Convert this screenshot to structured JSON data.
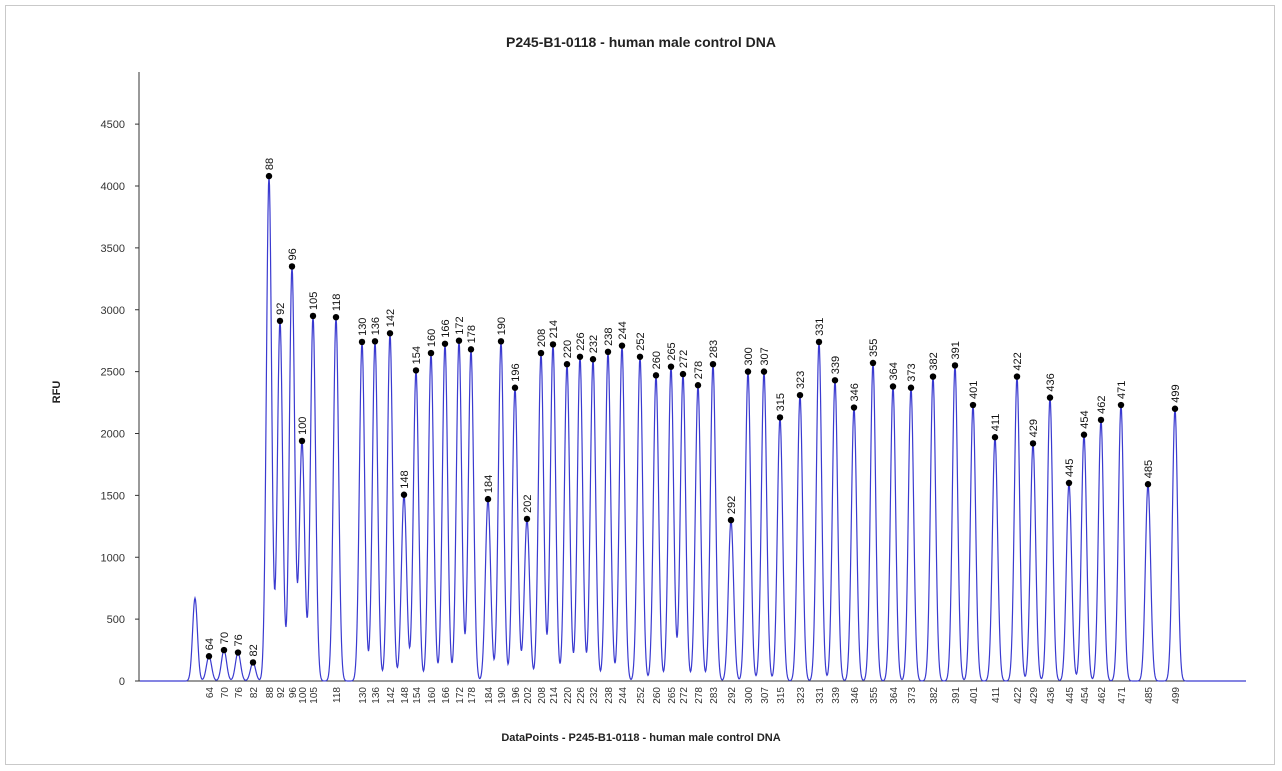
{
  "chart_data": {
    "type": "line",
    "title": "P245-B1-0118 - human male control DNA",
    "xlabel": "DataPoints - P245-B1-0118 - human male control DNA",
    "ylabel": "RFU",
    "ylim": [
      0,
      4800
    ],
    "yticks": [
      0,
      500,
      1000,
      1500,
      2000,
      2500,
      3000,
      3500,
      4000,
      4500
    ],
    "grid": false,
    "legend": "none",
    "line_color": "#3a3ad0",
    "marker_color": "#000000",
    "unlabeled_peaks": [
      {
        "size": 57,
        "rfu": 670
      }
    ],
    "peaks": [
      {
        "size": 64,
        "rfu": 200
      },
      {
        "size": 70,
        "rfu": 250
      },
      {
        "size": 76,
        "rfu": 230
      },
      {
        "size": 82,
        "rfu": 150
      },
      {
        "size": 88,
        "rfu": 4080
      },
      {
        "size": 92,
        "rfu": 2910
      },
      {
        "size": 96,
        "rfu": 3350
      },
      {
        "size": 100,
        "rfu": 1940
      },
      {
        "size": 105,
        "rfu": 2950
      },
      {
        "size": 118,
        "rfu": 2940
      },
      {
        "size": 130,
        "rfu": 2740
      },
      {
        "size": 136,
        "rfu": 2745
      },
      {
        "size": 142,
        "rfu": 2810
      },
      {
        "size": 148,
        "rfu": 1505
      },
      {
        "size": 154,
        "rfu": 2510
      },
      {
        "size": 160,
        "rfu": 2650
      },
      {
        "size": 166,
        "rfu": 2725
      },
      {
        "size": 172,
        "rfu": 2750
      },
      {
        "size": 178,
        "rfu": 2680
      },
      {
        "size": 184,
        "rfu": 1470
      },
      {
        "size": 190,
        "rfu": 2745
      },
      {
        "size": 196,
        "rfu": 2370
      },
      {
        "size": 202,
        "rfu": 1310
      },
      {
        "size": 208,
        "rfu": 2650
      },
      {
        "size": 214,
        "rfu": 2720
      },
      {
        "size": 220,
        "rfu": 2560
      },
      {
        "size": 226,
        "rfu": 2620
      },
      {
        "size": 232,
        "rfu": 2600
      },
      {
        "size": 238,
        "rfu": 2660
      },
      {
        "size": 244,
        "rfu": 2710
      },
      {
        "size": 252,
        "rfu": 2620
      },
      {
        "size": 260,
        "rfu": 2470
      },
      {
        "size": 265,
        "rfu": 2540
      },
      {
        "size": 272,
        "rfu": 2480
      },
      {
        "size": 278,
        "rfu": 2390
      },
      {
        "size": 283,
        "rfu": 2560
      },
      {
        "size": 292,
        "rfu": 1300
      },
      {
        "size": 300,
        "rfu": 2500
      },
      {
        "size": 307,
        "rfu": 2500
      },
      {
        "size": 315,
        "rfu": 2130
      },
      {
        "size": 323,
        "rfu": 2310
      },
      {
        "size": 331,
        "rfu": 2740
      },
      {
        "size": 339,
        "rfu": 2430
      },
      {
        "size": 346,
        "rfu": 2210
      },
      {
        "size": 355,
        "rfu": 2570
      },
      {
        "size": 364,
        "rfu": 2380
      },
      {
        "size": 373,
        "rfu": 2370
      },
      {
        "size": 382,
        "rfu": 2460
      },
      {
        "size": 391,
        "rfu": 2550
      },
      {
        "size": 401,
        "rfu": 2230
      },
      {
        "size": 411,
        "rfu": 1970
      },
      {
        "size": 422,
        "rfu": 2460
      },
      {
        "size": 429,
        "rfu": 1920
      },
      {
        "size": 436,
        "rfu": 2290
      },
      {
        "size": 445,
        "rfu": 1600
      },
      {
        "size": 454,
        "rfu": 1990
      },
      {
        "size": 462,
        "rfu": 2110
      },
      {
        "size": 471,
        "rfu": 2230
      },
      {
        "size": 485,
        "rfu": 1590
      },
      {
        "size": 499,
        "rfu": 2200
      }
    ]
  }
}
